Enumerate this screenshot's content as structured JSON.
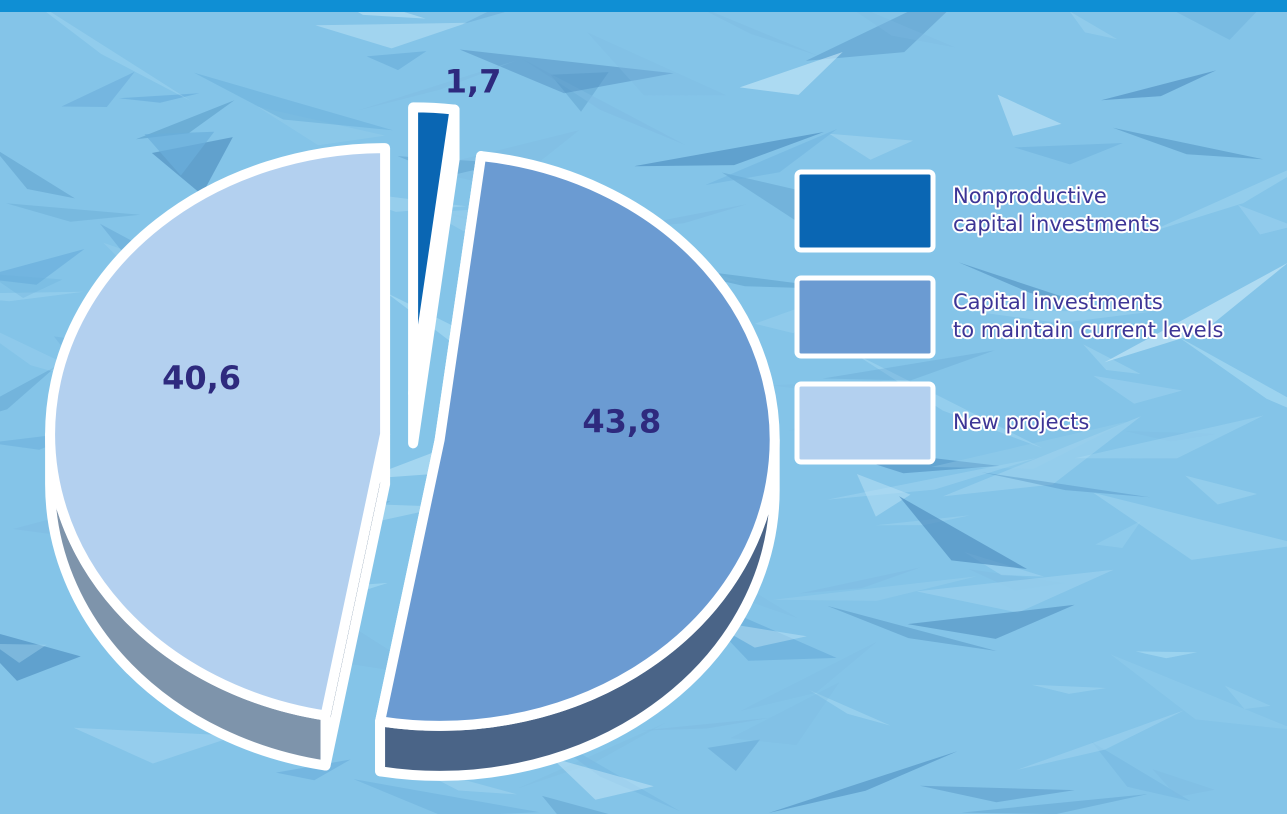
{
  "chart_data": {
    "type": "pie",
    "categories": [
      "Nonproductive capital investments",
      "Capital investments to maintain current levels",
      "New projects"
    ],
    "values": [
      1.7,
      43.8,
      40.6
    ],
    "value_labels": [
      "1,7",
      "43,8",
      "40,6"
    ],
    "legend_lines": [
      [
        "Nonproductive",
        "capital investments"
      ],
      [
        "Capital investments",
        "to maintain current levels"
      ],
      [
        "New projects"
      ]
    ],
    "colors": [
      "#0a66b3",
      "#6b9bd2",
      "#b3d0ef"
    ],
    "side_colors": [
      "#0b3f73",
      "#4a6487",
      "#7e94ab"
    ],
    "label_color": "#2e2a7e",
    "legend_placement": "right",
    "exploded": true,
    "three_d": true
  },
  "theme": {
    "top_bar_color": "#0f8fd4",
    "background_color": "#84c4e8"
  }
}
